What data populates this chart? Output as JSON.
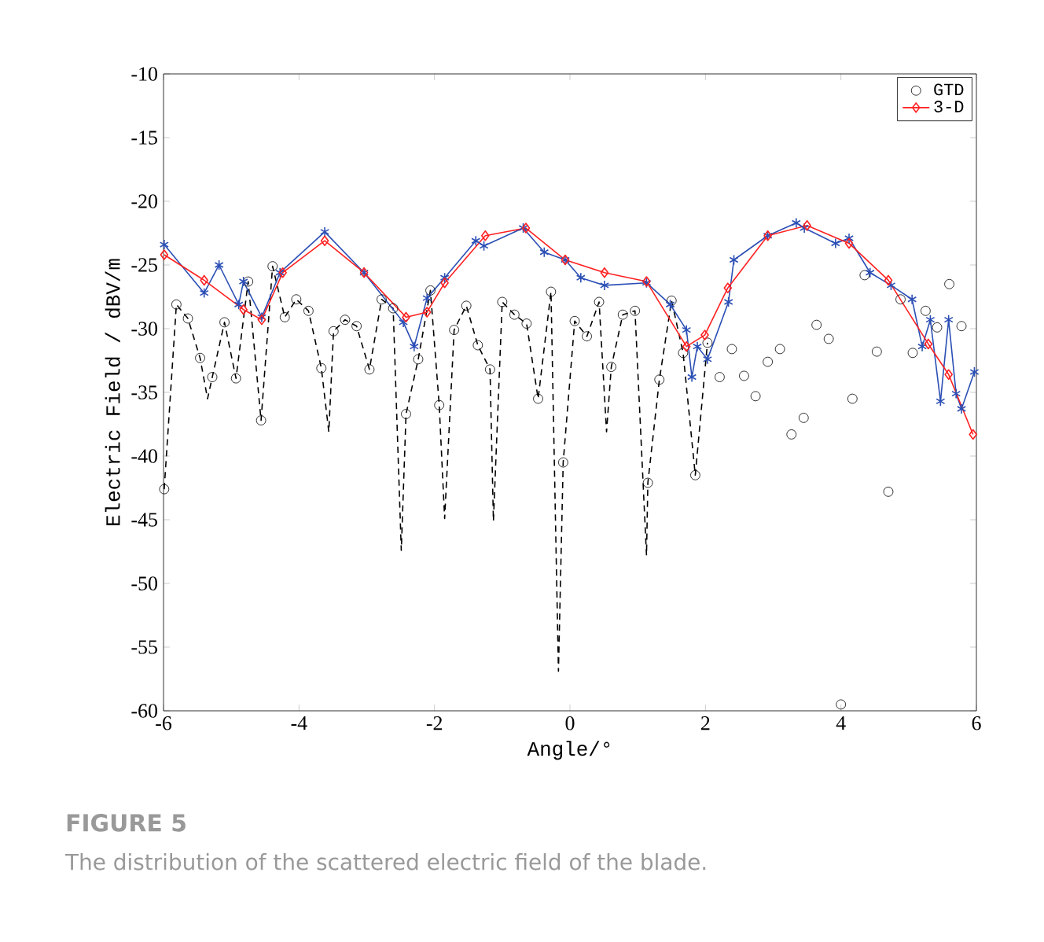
{
  "chart_data": {
    "type": "line",
    "xlabel": "Angle/°",
    "ylabel": "Electric Field / dBV/m",
    "annotations": [
      "FIGURE 5",
      "The distribution of the scattered electric field of the blade."
    ],
    "xlim": [
      -6,
      6
    ],
    "ylim": [
      -60,
      -10
    ],
    "xticks": [
      -6,
      -4,
      -2,
      0,
      2,
      4,
      6
    ],
    "yticks": [
      -60,
      -55,
      -50,
      -45,
      -40,
      -35,
      -30,
      -25,
      -20,
      -15,
      -10
    ],
    "grid": false,
    "legend": "top right",
    "series": [
      {
        "color": "#000000",
        "line_style": "dashed",
        "marker": "none",
        "x": [
          -5.99,
          -5.81,
          -5.64,
          -5.46,
          -5.35,
          -5.28,
          -5.1,
          -4.93,
          -4.75,
          -4.56,
          -4.39,
          -4.21,
          -4.04,
          -3.86,
          -3.67,
          -3.56,
          -3.49,
          -3.32,
          -3.15,
          -2.96,
          -2.78,
          -2.61,
          -2.49,
          -2.42,
          -2.24,
          -2.06,
          -1.93,
          -1.85,
          -1.71,
          -1.53,
          -1.36,
          -1.18,
          -1.13,
          -1.0,
          -0.82,
          -0.64,
          -0.47,
          -0.28,
          -0.17,
          -0.1,
          0.07,
          0.25,
          0.43,
          0.54,
          0.61,
          0.78,
          0.96,
          1.13,
          1.15,
          1.32,
          1.5,
          1.67,
          1.85,
          2.03
        ],
        "values": [
          -42.6,
          -28.1,
          -29.2,
          -32.3,
          -35.5,
          -33.8,
          -29.5,
          -33.9,
          -26.3,
          -37.2,
          -25.1,
          -29.1,
          -27.7,
          -28.6,
          -33.1,
          -38.1,
          -30.2,
          -29.3,
          -29.8,
          -33.2,
          -27.7,
          -28.4,
          -47.4,
          -36.7,
          -32.4,
          -27.0,
          -36.0,
          -44.9,
          -30.1,
          -28.2,
          -31.3,
          -33.2,
          -45.1,
          -27.9,
          -28.9,
          -29.6,
          -35.5,
          -27.1,
          -56.9,
          -40.5,
          -29.4,
          -30.6,
          -27.9,
          -38.1,
          -33.0,
          -28.9,
          -28.6,
          -47.8,
          -42.1,
          -34.0,
          -27.8,
          -31.9,
          -41.5,
          -31.1
        ]
      },
      {
        "type": "scatter",
        "name": "GTD",
        "color": "#000000",
        "marker": "circle",
        "x": [
          -5.99,
          -5.81,
          -5.64,
          -5.46,
          -5.28,
          -5.1,
          -4.93,
          -4.75,
          -4.56,
          -4.39,
          -4.21,
          -4.04,
          -3.86,
          -3.67,
          -3.49,
          -3.32,
          -3.15,
          -2.96,
          -2.78,
          -2.61,
          -2.42,
          -2.24,
          -2.06,
          -1.93,
          -1.71,
          -1.53,
          -1.36,
          -1.18,
          -1.0,
          -0.82,
          -0.64,
          -0.47,
          -0.28,
          -0.1,
          0.07,
          0.25,
          0.43,
          0.61,
          0.78,
          0.96,
          1.15,
          1.32,
          1.5,
          1.67,
          1.85,
          2.03,
          2.21,
          2.39,
          2.57,
          2.74,
          2.92,
          3.1,
          3.27,
          3.45,
          3.64,
          3.82,
          4.0,
          4.17,
          4.35,
          4.53,
          4.7,
          4.88,
          5.06,
          5.25,
          5.42,
          5.6,
          5.78
        ],
        "values": [
          -42.6,
          -28.1,
          -29.2,
          -32.3,
          -33.8,
          -29.5,
          -33.9,
          -26.3,
          -37.2,
          -25.1,
          -29.1,
          -27.7,
          -28.6,
          -33.1,
          -30.2,
          -29.3,
          -29.8,
          -33.2,
          -27.7,
          -28.4,
          -36.7,
          -32.4,
          -27.0,
          -36.0,
          -30.1,
          -28.2,
          -31.3,
          -33.2,
          -27.9,
          -28.9,
          -29.6,
          -35.5,
          -27.1,
          -40.5,
          -29.4,
          -30.6,
          -27.9,
          -33.0,
          -28.9,
          -28.6,
          -42.1,
          -34.0,
          -27.8,
          -31.9,
          -41.5,
          -31.1,
          -33.8,
          -31.6,
          -33.7,
          -35.3,
          -32.6,
          -31.6,
          -38.3,
          -37.0,
          -29.7,
          -30.8,
          -59.5,
          -35.5,
          -25.8,
          -31.8,
          -42.8,
          -27.7,
          -31.9,
          -28.6,
          -29.9,
          -26.5,
          -29.8
        ]
      },
      {
        "color": "#2b4fb5",
        "line_style": "solid",
        "marker": "cross",
        "x": [
          -5.99,
          -5.4,
          -5.18,
          -4.89,
          -4.82,
          -4.55,
          -4.28,
          -3.62,
          -3.04,
          -2.46,
          -2.3,
          -2.11,
          -1.85,
          -1.39,
          -1.27,
          -0.69,
          -0.38,
          -0.07,
          0.16,
          0.51,
          1.13,
          1.48,
          1.72,
          1.8,
          1.88,
          2.03,
          2.34,
          2.42,
          2.92,
          3.34,
          3.46,
          3.92,
          4.12,
          4.43,
          4.74,
          5.05,
          5.2,
          5.32,
          5.47,
          5.59,
          5.7,
          5.78,
          5.97
        ],
        "values": [
          -23.4,
          -27.2,
          -25.0,
          -28.1,
          -26.3,
          -29.1,
          -25.6,
          -22.4,
          -25.6,
          -29.5,
          -31.4,
          -27.6,
          -26.0,
          -23.1,
          -23.5,
          -22.1,
          -24.0,
          -24.6,
          -26.0,
          -26.6,
          -26.4,
          -28.1,
          -30.1,
          -33.8,
          -31.4,
          -32.4,
          -27.9,
          -24.6,
          -22.7,
          -21.7,
          -22.1,
          -23.3,
          -22.9,
          -25.6,
          -26.6,
          -27.7,
          -31.4,
          -29.3,
          -35.7,
          -29.3,
          -35.1,
          -36.3,
          -33.4
        ]
      },
      {
        "name": "3-D",
        "color": "#ff2020",
        "line_style": "solid",
        "marker": "diamond",
        "x": [
          -5.99,
          -5.4,
          -4.82,
          -4.55,
          -4.24,
          -3.62,
          -3.04,
          -2.42,
          -2.11,
          -1.85,
          -1.25,
          -0.65,
          -0.07,
          0.51,
          1.13,
          1.72,
          1.99,
          2.33,
          2.92,
          3.5,
          4.12,
          4.7,
          5.29,
          5.59,
          5.95
        ],
        "values": [
          -24.2,
          -26.2,
          -28.5,
          -29.3,
          -25.6,
          -23.1,
          -25.6,
          -29.1,
          -28.7,
          -26.4,
          -22.7,
          -22.1,
          -24.6,
          -25.6,
          -26.3,
          -31.4,
          -30.5,
          -26.8,
          -22.7,
          -21.9,
          -23.3,
          -26.2,
          -31.2,
          -33.6,
          -38.3
        ]
      }
    ]
  }
}
